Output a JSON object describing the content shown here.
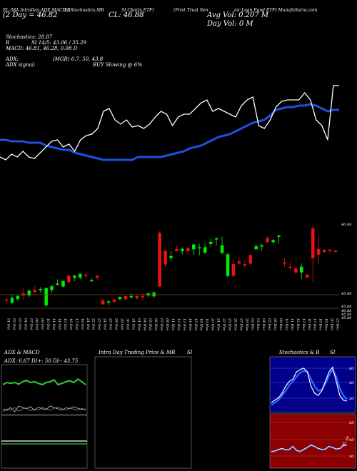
{
  "header": {
    "tabs": [
      "EL-38A IntraDay ADX,MACD,B",
      "SI,Stochastics,MR",
      "SI Charts ETF)",
      "(First Trust Sen",
      "ior Loan Fund ETF) MunafaSutra.com"
    ],
    "day_label": "(2 Day",
    "day_value": "46.82",
    "cl_label": "CL:",
    "cl_value": "46.88",
    "avg_vol": "Avg Vol: 0.207 M",
    "day_vol": "Day Vol: 0   M"
  },
  "indicators": {
    "stochastics": "Stochastics: 28.87",
    "rsi_prefix": "R",
    "rsi": "SI 14/5: 43.06 / 35.29",
    "macd": "MACD: 46.81, 46.28, 0.08 D",
    "adx_label": "ADX:",
    "adx_values": "(MGR) 6.7, 50, 43.8",
    "adx_signal_label": "ADX  signal:",
    "buy_signal": "BUY Slowing @ 6%"
  },
  "price_labels": {
    "right_high": "46.88",
    "right_low": "45.89",
    "right_low_2": "45.89",
    "right_mid_1": "46.88",
    "right_mid_2": "45.89",
    "right_mid_3": "45.89"
  },
  "panels": {
    "left_title": "ADX  & MACD",
    "left_values": "ADX: 6.67  DI+: 50  DI-: 43.75",
    "middle_title_a": "Intra  Day Trading Price  & MR",
    "middle_title_b": "SI",
    "right_title_a": "Stochastics & R",
    "right_title_b": "SI",
    "stoch_ticks": [
      "80",
      "50",
      "20"
    ],
    "rsi_ticks": [
      "55",
      "45",
      "36"
    ],
    "rsi_side_label": "46, 36"
  },
  "chart_data": {
    "type": "candlestick",
    "dates": [
      "01 Oct",
      "02 Oct",
      "03 Oct",
      "04 Oct",
      "07 Oct",
      "08 Oct",
      "09 Oct",
      "10 Oct",
      "11 Oct",
      "14 Oct",
      "15 Oct",
      "16 Oct",
      "17 Oct",
      "18 Oct",
      "21 Oct",
      "22 Oct",
      "23 Oct",
      "24 Oct",
      "25 Oct",
      "28 Oct",
      "29 Oct",
      "30 Oct",
      "31 Oct",
      "01 Nov",
      "04 Nov",
      "05 Nov",
      "06 Nov",
      "07 Nov",
      "08 Nov",
      "11 Nov",
      "12 Nov",
      "13 Nov",
      "14 Nov",
      "15 Nov",
      "18 Nov",
      "19 Nov",
      "20 Nov",
      "21 Nov",
      "22 Nov",
      "25 Nov",
      "26 Nov",
      "27 Nov",
      "29 Nov",
      "02 Dec",
      "03 Dec",
      "04 Dec",
      "05 Dec",
      "06 Dec",
      "09 Dec",
      "10 Dec",
      "11 Dec",
      "12 Dec",
      "13 Dec",
      "16 Dec",
      "17 Dec",
      "18 Dec",
      "19 Dec",
      "20 Dec",
      "23 Dec"
    ],
    "price_range": [
      45.89,
      46.95
    ],
    "candles": [
      [
        46.05,
        46.04,
        46.0,
        46.07,
        "r"
      ],
      [
        46.02,
        46.07,
        46.0,
        46.1,
        "g"
      ],
      [
        46.06,
        46.09,
        46.04,
        46.11,
        "g"
      ],
      [
        46.12,
        46.1,
        46.05,
        46.18,
        "r"
      ],
      [
        46.1,
        46.15,
        46.08,
        46.17,
        "g"
      ],
      [
        46.16,
        46.14,
        46.12,
        46.2,
        "r"
      ],
      [
        46.16,
        46.17,
        46.13,
        46.19,
        "g"
      ],
      [
        46.18,
        45.99,
        45.97,
        46.19,
        "g"
      ],
      [
        46.16,
        46.2,
        46.13,
        46.22,
        "g"
      ],
      [
        46.22,
        46.23,
        46.21,
        46.28,
        "g"
      ],
      [
        46.2,
        46.26,
        46.19,
        46.27,
        "g"
      ],
      [
        46.25,
        46.32,
        46.25,
        46.33,
        "r"
      ],
      [
        46.3,
        46.32,
        46.26,
        46.33,
        "g"
      ],
      [
        46.3,
        46.34,
        46.28,
        46.34,
        "g"
      ],
      [
        46.32,
        46.33,
        46.28,
        46.35,
        "r"
      ],
      [
        46.26,
        46.27,
        46.25,
        46.29,
        "g"
      ],
      [
        46.3,
        46.32,
        46.27,
        46.32,
        "r"
      ],
      [
        46.0,
        46.04,
        46.0,
        46.06,
        "r"
      ],
      [
        46.02,
        46.03,
        45.99,
        46.04,
        "g"
      ],
      [
        46.03,
        46.05,
        46.01,
        46.07,
        "r"
      ],
      [
        46.06,
        46.08,
        46.04,
        46.09,
        "g"
      ],
      [
        46.06,
        46.09,
        46.04,
        46.09,
        "r"
      ],
      [
        46.08,
        46.09,
        46.06,
        46.12,
        "g"
      ],
      [
        46.07,
        46.09,
        46.05,
        46.11,
        "r"
      ],
      [
        46.08,
        46.09,
        46.04,
        46.12,
        "r"
      ],
      [
        46.1,
        46.12,
        46.08,
        46.12,
        "g"
      ],
      [
        46.09,
        46.13,
        46.07,
        46.15,
        "g"
      ],
      [
        46.2,
        46.8,
        46.2,
        46.82,
        "r"
      ],
      [
        46.6,
        46.45,
        46.42,
        46.61,
        "r"
      ],
      [
        46.52,
        46.54,
        46.48,
        46.6,
        "g"
      ],
      [
        46.62,
        46.6,
        46.6,
        46.66,
        "r"
      ],
      [
        46.6,
        46.62,
        46.56,
        46.64,
        "g"
      ],
      [
        46.63,
        46.6,
        46.56,
        46.65,
        "r"
      ],
      [
        46.62,
        46.67,
        46.55,
        46.68,
        "g"
      ],
      [
        46.63,
        46.64,
        46.55,
        46.68,
        "g"
      ],
      [
        46.64,
        46.58,
        46.57,
        46.68,
        "g"
      ],
      [
        46.68,
        46.7,
        46.64,
        46.74,
        "g"
      ],
      [
        46.74,
        46.74,
        46.66,
        46.75,
        "g"
      ],
      [
        46.58,
        46.66,
        46.56,
        46.76,
        "g"
      ],
      [
        46.56,
        46.32,
        46.3,
        46.58,
        "g"
      ],
      [
        46.32,
        46.45,
        46.3,
        46.5,
        "r"
      ],
      [
        46.46,
        46.48,
        46.45,
        46.53,
        "r"
      ],
      [
        46.45,
        46.44,
        46.41,
        46.5,
        "r"
      ],
      [
        46.55,
        46.46,
        46.44,
        46.58,
        "r"
      ],
      [
        46.65,
        46.62,
        46.62,
        46.68,
        "g"
      ],
      [
        46.66,
        46.65,
        46.6,
        46.68,
        "g"
      ],
      [
        46.7,
        46.74,
        46.7,
        46.77,
        "r"
      ],
      [
        46.7,
        46.72,
        46.68,
        46.73,
        "g"
      ],
      [
        46.76,
        46.77,
        46.68,
        46.78,
        "g"
      ],
      [
        46.47,
        46.46,
        46.42,
        46.52,
        "r"
      ],
      [
        46.42,
        46.42,
        46.38,
        46.48,
        "r"
      ],
      [
        46.4,
        46.36,
        46.34,
        46.42,
        "r"
      ],
      [
        46.42,
        46.36,
        46.28,
        46.46,
        "g"
      ],
      [
        46.33,
        46.3,
        46.3,
        46.34,
        "r"
      ],
      [
        46.85,
        46.52,
        46.25,
        46.88,
        "r"
      ],
      [
        46.62,
        46.56,
        46.45,
        46.78,
        "r"
      ],
      [
        46.61,
        46.59,
        46.58,
        46.62,
        "r"
      ],
      [
        46.6,
        46.61,
        46.57,
        46.62,
        "r"
      ],
      [
        46.6,
        46.6,
        46.58,
        46.61,
        "r"
      ]
    ],
    "rsi_line": [
      0.4,
      0.38,
      0.42,
      0.4,
      0.44,
      0.4,
      0.39,
      0.43,
      0.47,
      0.51,
      0.52,
      0.47,
      0.49,
      0.44,
      0.52,
      0.55,
      0.56,
      0.6,
      0.72,
      0.74,
      0.66,
      0.63,
      0.66,
      0.61,
      0.62,
      0.6,
      0.63,
      0.68,
      0.72,
      0.7,
      0.62,
      0.68,
      0.7,
      0.7,
      0.74,
      0.78,
      0.8,
      0.72,
      0.74,
      0.72,
      0.7,
      0.68,
      0.76,
      0.8,
      0.82,
      0.62,
      0.6,
      0.66,
      0.75,
      0.79,
      0.8,
      0.8,
      0.8,
      0.85,
      0.8,
      0.66,
      0.62,
      0.52,
      0.9,
      0.9
    ],
    "ma_line": [
      0.52,
      0.52,
      0.51,
      0.51,
      0.51,
      0.5,
      0.5,
      0.5,
      0.48,
      0.47,
      0.46,
      0.45,
      0.45,
      0.43,
      0.42,
      0.41,
      0.4,
      0.39,
      0.38,
      0.38,
      0.38,
      0.38,
      0.38,
      0.38,
      0.4,
      0.4,
      0.4,
      0.4,
      0.4,
      0.41,
      0.42,
      0.43,
      0.44,
      0.46,
      0.47,
      0.48,
      0.5,
      0.52,
      0.54,
      0.55,
      0.56,
      0.58,
      0.6,
      0.62,
      0.64,
      0.65,
      0.66,
      0.69,
      0.73,
      0.74,
      0.75,
      0.75,
      0.76,
      0.76,
      0.77,
      0.76,
      0.74,
      0.72,
      0.73,
      0.73
    ],
    "stoch_k": [
      0.15,
      0.2,
      0.25,
      0.35,
      0.5,
      0.6,
      0.65,
      0.8,
      0.85,
      0.88,
      0.8,
      0.5,
      0.35,
      0.3,
      0.4,
      0.6,
      0.8,
      0.9,
      0.6,
      0.3,
      0.2,
      0.18
    ],
    "stoch_d": [
      0.1,
      0.15,
      0.2,
      0.3,
      0.4,
      0.52,
      0.6,
      0.7,
      0.78,
      0.82,
      0.8,
      0.65,
      0.5,
      0.4,
      0.42,
      0.55,
      0.72,
      0.85,
      0.7,
      0.45,
      0.3,
      0.22
    ],
    "rsi_panel": [
      0.3,
      0.32,
      0.4,
      0.45,
      0.38,
      0.4,
      0.55,
      0.35,
      0.3,
      0.4,
      0.5,
      0.62,
      0.55,
      0.45,
      0.4,
      0.42,
      0.55,
      0.5,
      0.42,
      0.45,
      0.6,
      0.62
    ],
    "adx_line": [
      0.55,
      0.6,
      0.58,
      0.6,
      0.56,
      0.62,
      0.65,
      0.6,
      0.62,
      0.58,
      0.55,
      0.6,
      0.62,
      0.66,
      0.55,
      0.58,
      0.62,
      0.64,
      0.6,
      0.68,
      0.62,
      0.55
    ],
    "di_plus": [
      0.3,
      0.25,
      0.35,
      0.2,
      0.4,
      0.35,
      0.3,
      0.38,
      0.25,
      0.36,
      0.3,
      0.28,
      0.4,
      0.35,
      0.3,
      0.26,
      0.34,
      0.3,
      0.38,
      0.32,
      0.28,
      0.3
    ],
    "di_minus": [
      0.2,
      0.3,
      0.25,
      0.35,
      0.22,
      0.3,
      0.34,
      0.24,
      0.3,
      0.26,
      0.35,
      0.3,
      0.25,
      0.32,
      0.36,
      0.3,
      0.26,
      0.34,
      0.28,
      0.25,
      0.32,
      0.26
    ]
  }
}
